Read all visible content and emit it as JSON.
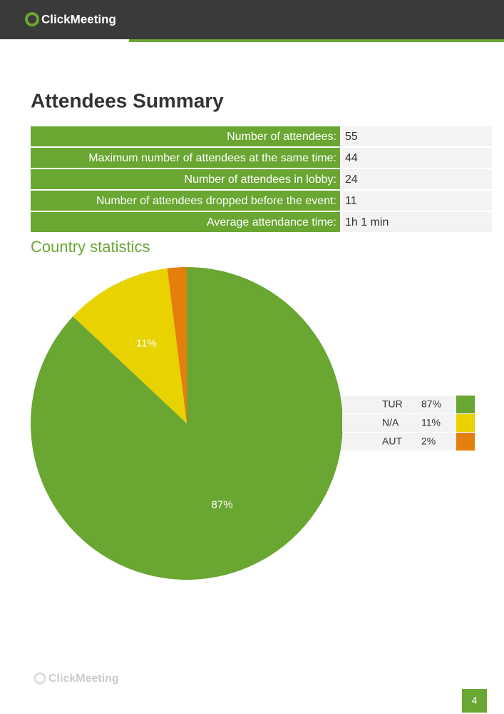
{
  "header": {
    "logo": "ClickMeeting"
  },
  "title": "Attendees Summary",
  "table": {
    "rows": [
      [
        "Number of attendees:",
        55
      ],
      [
        "Maximum number of attendees at the same time:",
        44
      ],
      [
        "Number of attendees in lobby:",
        24
      ],
      [
        "Number of attendees dropped before the event:",
        11
      ],
      [
        "Average attendance time:",
        "1h 1 min"
      ]
    ]
  },
  "chart_data": {
    "type": "pie",
    "title": "Country statistics",
    "categories": [
      "TUR",
      "N/A",
      "AUT"
    ],
    "values": [
      87,
      11,
      2
    ],
    "value_labels": [
      "87%",
      "11%",
      "2%"
    ],
    "colors": [
      "#6aa632",
      "#e8d200",
      "#e57f0b"
    ]
  },
  "footer": {
    "logo": "ClickMeeting",
    "page": 4
  }
}
